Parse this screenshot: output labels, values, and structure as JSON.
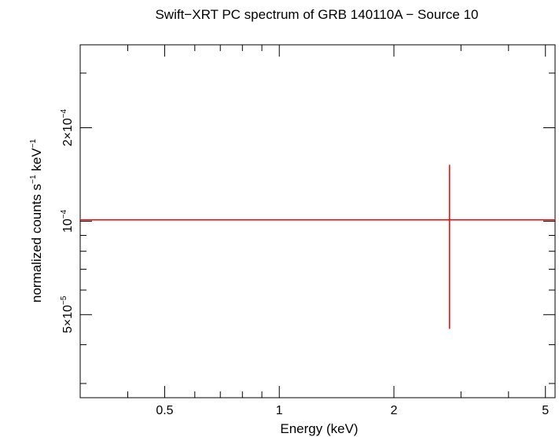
{
  "chart_data": {
    "type": "scatter",
    "title": "Swift−XRT PC spectrum of GRB 140110A − Source 10",
    "xlabel": "Energy (keV)",
    "ylabel": {
      "pre": "normalized counts s",
      "sup1": "−1",
      "mid": " keV",
      "sup2": "−1"
    },
    "xscale": "log",
    "yscale": "log",
    "xlim": [
      0.3,
      5.3
    ],
    "ylim": [
      2.7e-05,
      0.00037
    ],
    "x_ticks": [
      {
        "value": 0.5,
        "label": "0.5"
      },
      {
        "value": 1,
        "label": "1"
      },
      {
        "value": 2,
        "label": "2"
      },
      {
        "value": 5,
        "label": "5"
      }
    ],
    "y_ticks": [
      {
        "value": 5e-05,
        "mant": "5×10",
        "exp": "−5"
      },
      {
        "value": 0.0001,
        "mant": "10",
        "exp": "−4"
      },
      {
        "value": 0.0002,
        "mant": "2×10",
        "exp": "−4"
      }
    ],
    "y_minor_ticks": [
      3e-05,
      4e-05,
      6e-05,
      7e-05,
      8e-05,
      9e-05,
      0.0003
    ],
    "x_minor_ticks": [
      0.3,
      0.4,
      0.6,
      0.7,
      0.8,
      0.9,
      3,
      4
    ],
    "series": [
      {
        "color": "#ff0000",
        "points": [
          {
            "x": 2.8,
            "y": 0.000101,
            "xerr": [
              0.3,
              5.3
            ],
            "yerr": [
              4.5e-05,
              0.000152
            ]
          }
        ],
        "model": {
          "y": 0.000101,
          "x_range": [
            0.3,
            5.3
          ]
        }
      }
    ],
    "grid": false
  }
}
